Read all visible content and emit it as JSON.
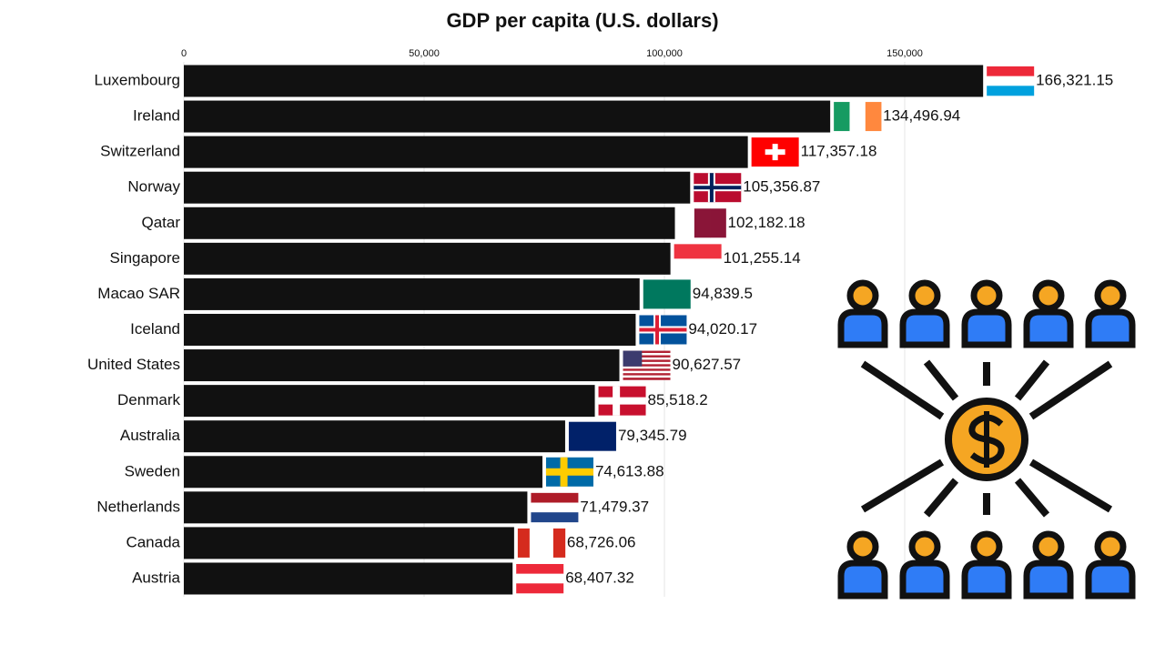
{
  "chart_data": {
    "type": "bar",
    "orientation": "horizontal",
    "title": "GDP per capita (U.S. dollars)",
    "categories": [
      "Luxembourg",
      "Ireland",
      "Switzerland",
      "Norway",
      "Qatar",
      "Singapore",
      "Macao SAR",
      "Iceland",
      "United States",
      "Denmark",
      "Australia",
      "Sweden",
      "Netherlands",
      "Canada",
      "Austria"
    ],
    "values": [
      166321.15,
      134496.94,
      117357.18,
      105356.87,
      102182.18,
      101255.14,
      94839.5,
      94020.17,
      90627.57,
      85518.2,
      79345.79,
      74613.88,
      71479.37,
      68726.06,
      68407.32
    ],
    "value_labels": [
      "166,321.15",
      "134,496.94",
      "117,357.18",
      "105,356.87",
      "102,182.18",
      "101,255.14",
      "94,839.5",
      "94,020.17",
      "90,627.57",
      "85,518.2",
      "79,345.79",
      "74,613.88",
      "71,479.37",
      "68,726.06",
      "68,407.32"
    ],
    "color": "#111111",
    "xlim": [
      0,
      200000
    ],
    "xticks": [
      0,
      {
        "value": 50000,
        "label": "50,000"
      },
      {
        "value": 100000,
        "label": "100,000"
      },
      {
        "value": 150000,
        "label": "150,000"
      }
    ],
    "grid": true
  }
}
